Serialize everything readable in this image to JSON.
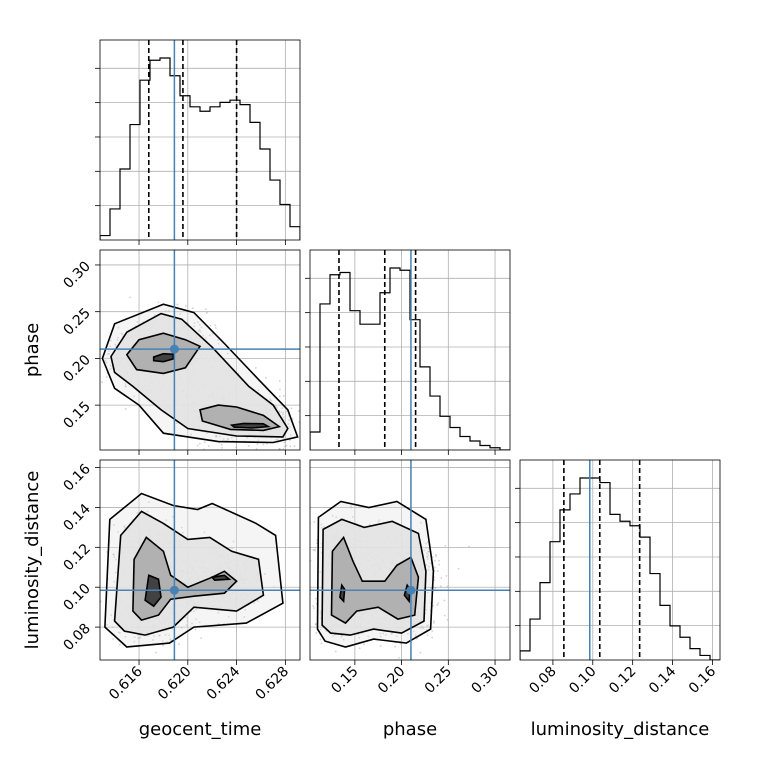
{
  "chart_data": {
    "type": "corner",
    "parameters": [
      "geocent_time",
      "phase",
      "luminosity_distance"
    ],
    "truth_color": "#4682b4",
    "hist_color": "#000000",
    "ranges": {
      "geocent_time": [
        0.6128,
        0.6292
      ],
      "phase": [
        0.102,
        0.316
      ],
      "luminosity_distance": [
        0.0635,
        0.1638
      ]
    },
    "ticks": {
      "geocent_time": [
        "0.616",
        "0.620",
        "0.624",
        "0.628"
      ],
      "phase": [
        "0.15",
        "0.20",
        "0.25",
        "0.30"
      ],
      "luminosity_distance": [
        "0.08",
        "0.10",
        "0.12",
        "0.14",
        "0.16"
      ]
    },
    "truths": {
      "geocent_time": 0.6189,
      "phase": 0.21,
      "luminosity_distance": 0.0985
    },
    "quantiles": {
      "geocent_time": [
        0.6168,
        0.6196,
        0.624
      ],
      "phase": [
        0.133,
        0.182,
        0.215
      ],
      "luminosity_distance": [
        0.0855,
        0.1035,
        0.1235
      ]
    },
    "histograms": {
      "geocent_time": {
        "edges_range": [
          0.6128,
          0.6292
        ],
        "counts": [
          2,
          14,
          32,
          52,
          72,
          81,
          82,
          74,
          65,
          60,
          58,
          60,
          62,
          63,
          61,
          53,
          41,
          27,
          16,
          6
        ]
      },
      "phase": {
        "edges_range": [
          0.102,
          0.316
        ],
        "counts": [
          8,
          65,
          78,
          79,
          62,
          56,
          56,
          70,
          81,
          80,
          58,
          37,
          24,
          15,
          10,
          6,
          4,
          2,
          1,
          0
        ]
      },
      "luminosity_distance": {
        "edges_range": [
          0.0635,
          0.1638
        ],
        "counts": [
          4,
          18,
          34,
          52,
          66,
          73,
          80,
          80,
          78,
          64,
          61,
          59,
          54,
          38,
          24,
          15,
          10,
          5,
          2,
          0
        ]
      }
    },
    "contours_2d": {
      "phase_vs_geocent_time": [
        {
          "level": "inner",
          "points": [
            [
              0.6172,
              0.2015
            ],
            [
              0.618,
              0.205
            ],
            [
              0.6188,
              0.2045
            ],
            [
              0.6188,
              0.1995
            ],
            [
              0.618,
              0.1965
            ],
            [
              0.6172,
              0.1975
            ]
          ]
        },
        {
          "level": "inner",
          "points": [
            [
              0.6236,
              0.1285
            ],
            [
              0.6246,
              0.1305
            ],
            [
              0.6262,
              0.13
            ],
            [
              0.6266,
              0.127
            ],
            [
              0.6252,
              0.1255
            ],
            [
              0.6238,
              0.1265
            ]
          ]
        },
        {
          "level": "mid",
          "points": [
            [
              0.615,
              0.204
            ],
            [
              0.616,
              0.22
            ],
            [
              0.618,
              0.227
            ],
            [
              0.6198,
              0.22
            ],
            [
              0.621,
              0.213
            ],
            [
              0.6198,
              0.19
            ],
            [
              0.618,
              0.184
            ],
            [
              0.6158,
              0.188
            ]
          ]
        },
        {
          "level": "mid",
          "points": [
            [
              0.621,
              0.145
            ],
            [
              0.6225,
              0.15
            ],
            [
              0.624,
              0.148
            ],
            [
              0.6262,
              0.139
            ],
            [
              0.6275,
              0.127
            ],
            [
              0.6262,
              0.123
            ],
            [
              0.6235,
              0.124
            ],
            [
              0.6212,
              0.133
            ]
          ]
        },
        {
          "level": "outer",
          "points": [
            [
              0.6137,
              0.202
            ],
            [
              0.615,
              0.228
            ],
            [
              0.6178,
              0.248
            ],
            [
              0.6195,
              0.242
            ],
            [
              0.622,
              0.212
            ],
            [
              0.625,
              0.17
            ],
            [
              0.627,
              0.15
            ],
            [
              0.6282,
              0.125
            ],
            [
              0.6278,
              0.116
            ],
            [
              0.624,
              0.117
            ],
            [
              0.62,
              0.125
            ],
            [
              0.6178,
              0.145
            ],
            [
              0.6155,
              0.17
            ],
            [
              0.614,
              0.185
            ]
          ]
        },
        {
          "level": "outer",
          "points": [
            [
              0.613,
              0.2
            ],
            [
              0.614,
              0.237
            ],
            [
              0.618,
              0.258
            ],
            [
              0.6205,
              0.249
            ],
            [
              0.623,
              0.216
            ],
            [
              0.6262,
              0.172
            ],
            [
              0.6282,
              0.145
            ],
            [
              0.629,
              0.116
            ],
            [
              0.627,
              0.11
            ],
            [
              0.6225,
              0.111
            ],
            [
              0.618,
              0.12
            ],
            [
              0.616,
              0.15
            ],
            [
              0.614,
              0.168
            ]
          ]
        }
      ],
      "luminosity_distance_vs_geocent_time": [
        {
          "level": "inner",
          "points": [
            [
              0.6165,
              0.0935
            ],
            [
              0.6168,
              0.106
            ],
            [
              0.6176,
              0.104
            ],
            [
              0.6178,
              0.095
            ],
            [
              0.6172,
              0.0905
            ]
          ]
        },
        {
          "level": "inner",
          "points": [
            [
              0.622,
              0.105
            ],
            [
              0.623,
              0.106
            ],
            [
              0.6234,
              0.104
            ],
            [
              0.6222,
              0.1035
            ]
          ]
        },
        {
          "level": "mid",
          "points": [
            [
              0.6155,
              0.088
            ],
            [
              0.6156,
              0.114
            ],
            [
              0.6166,
              0.125
            ],
            [
              0.618,
              0.118
            ],
            [
              0.6186,
              0.106
            ],
            [
              0.62,
              0.1
            ],
            [
              0.622,
              0.105
            ],
            [
              0.623,
              0.108
            ],
            [
              0.624,
              0.103
            ],
            [
              0.623,
              0.097
            ],
            [
              0.6205,
              0.0955
            ],
            [
              0.6186,
              0.094
            ],
            [
              0.6176,
              0.086
            ],
            [
              0.6162,
              0.0835
            ]
          ]
        },
        {
          "level": "outer",
          "points": [
            [
              0.614,
              0.083
            ],
            [
              0.6145,
              0.126
            ],
            [
              0.6162,
              0.138
            ],
            [
              0.618,
              0.132
            ],
            [
              0.62,
              0.124
            ],
            [
              0.6218,
              0.125
            ],
            [
              0.6236,
              0.118
            ],
            [
              0.6258,
              0.114
            ],
            [
              0.6262,
              0.096
            ],
            [
              0.624,
              0.088
            ],
            [
              0.6205,
              0.09
            ],
            [
              0.6188,
              0.08
            ],
            [
              0.6165,
              0.076
            ],
            [
              0.6148,
              0.078
            ]
          ]
        },
        {
          "level": "outer",
          "points": [
            [
              0.6132,
              0.08
            ],
            [
              0.6136,
              0.134
            ],
            [
              0.6162,
              0.147
            ],
            [
              0.6188,
              0.141
            ],
            [
              0.6208,
              0.139
            ],
            [
              0.622,
              0.142
            ],
            [
              0.6256,
              0.132
            ],
            [
              0.6272,
              0.126
            ],
            [
              0.6278,
              0.092
            ],
            [
              0.6248,
              0.082
            ],
            [
              0.6205,
              0.08
            ],
            [
              0.6185,
              0.072
            ],
            [
              0.615,
              0.07
            ]
          ]
        }
      ],
      "luminosity_distance_vs_phase": [
        {
          "level": "inner",
          "points": [
            [
              0.134,
              0.095
            ],
            [
              0.136,
              0.101
            ],
            [
              0.139,
              0.099
            ],
            [
              0.138,
              0.093
            ]
          ]
        },
        {
          "level": "inner",
          "points": [
            [
              0.203,
              0.096
            ],
            [
              0.206,
              0.101
            ],
            [
              0.209,
              0.099
            ],
            [
              0.208,
              0.093
            ]
          ]
        },
        {
          "level": "mid",
          "points": [
            [
              0.125,
              0.086
            ],
            [
              0.126,
              0.118
            ],
            [
              0.138,
              0.125
            ],
            [
              0.148,
              0.113
            ],
            [
              0.158,
              0.103
            ],
            [
              0.182,
              0.103
            ],
            [
              0.195,
              0.111
            ],
            [
              0.21,
              0.115
            ],
            [
              0.218,
              0.105
            ],
            [
              0.214,
              0.086
            ],
            [
              0.196,
              0.084
            ],
            [
              0.175,
              0.09
            ],
            [
              0.152,
              0.088
            ],
            [
              0.14,
              0.082
            ]
          ]
        },
        {
          "level": "outer",
          "points": [
            [
              0.115,
              0.081
            ],
            [
              0.116,
              0.129
            ],
            [
              0.136,
              0.134
            ],
            [
              0.16,
              0.13
            ],
            [
              0.19,
              0.133
            ],
            [
              0.218,
              0.127
            ],
            [
              0.226,
              0.108
            ],
            [
              0.224,
              0.083
            ],
            [
              0.2,
              0.077
            ],
            [
              0.17,
              0.079
            ],
            [
              0.145,
              0.076
            ],
            [
              0.124,
              0.077
            ]
          ]
        },
        {
          "level": "outer",
          "points": [
            [
              0.11,
              0.079
            ],
            [
              0.111,
              0.135
            ],
            [
              0.135,
              0.143
            ],
            [
              0.165,
              0.14
            ],
            [
              0.195,
              0.143
            ],
            [
              0.226,
              0.134
            ],
            [
              0.234,
              0.108
            ],
            [
              0.231,
              0.079
            ],
            [
              0.205,
              0.072
            ],
            [
              0.17,
              0.074
            ],
            [
              0.14,
              0.07
            ],
            [
              0.118,
              0.073
            ]
          ]
        }
      ]
    }
  }
}
